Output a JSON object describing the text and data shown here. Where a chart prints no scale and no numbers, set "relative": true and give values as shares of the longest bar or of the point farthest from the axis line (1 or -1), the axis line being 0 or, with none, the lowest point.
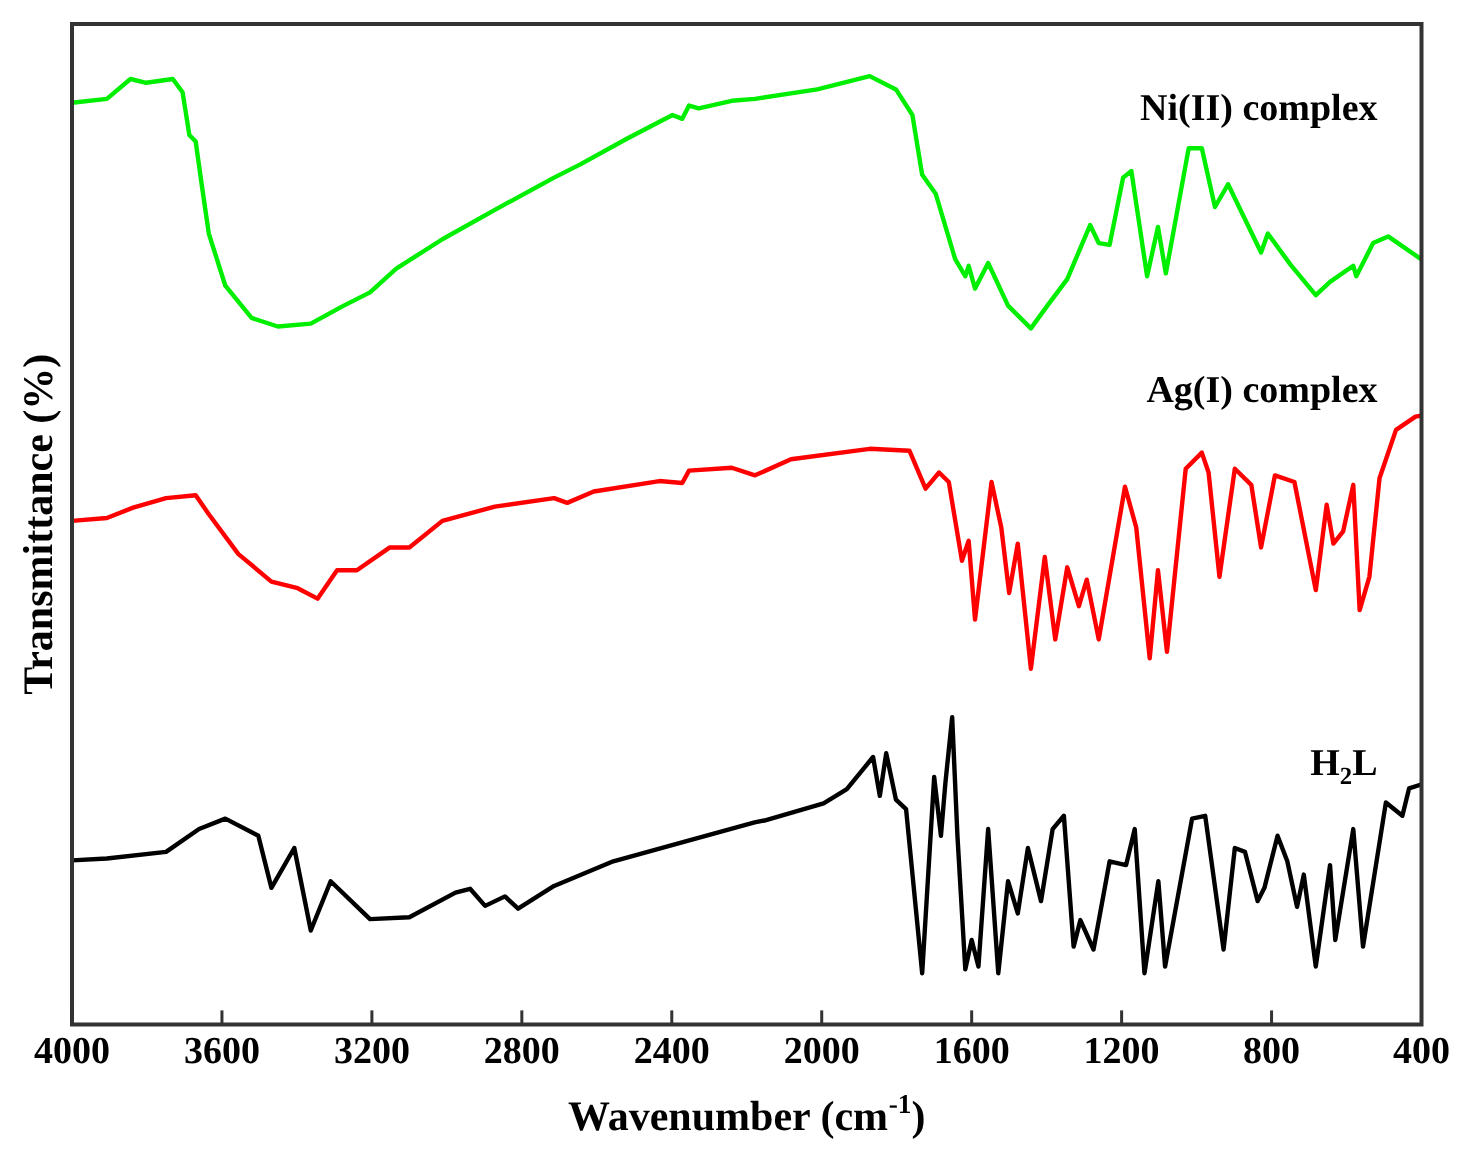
{
  "chart_data": {
    "type": "line",
    "relative": true,
    "xlabel": "Wavenumber (cm$^{-1}$)",
    "ylabel": "Transmittance (%)",
    "xlim": [
      4000,
      400
    ],
    "xticks": [
      4000,
      3600,
      3200,
      2800,
      2400,
      2000,
      1600,
      1200,
      800,
      400
    ],
    "grid": false,
    "legend": false,
    "marker": "none",
    "line_style": "solid",
    "series": [
      {
        "name": "Ni(II) complex",
        "color": "#00ee00",
        "x": [
          4000,
          3907,
          3844,
          3802,
          3731,
          3705,
          3687,
          3670,
          3653,
          3635,
          3591,
          3521,
          3451,
          3363,
          3275,
          3205,
          3135,
          3012,
          2872,
          2714,
          2644,
          2520,
          2398,
          2372,
          2354,
          2328,
          2240,
          2178,
          2012,
          1872,
          1802,
          1758,
          1732,
          1696,
          1644,
          1617,
          1608,
          1591,
          1556,
          1503,
          1442,
          1398,
          1345,
          1284,
          1261,
          1232,
          1196,
          1174,
          1132,
          1103,
          1082,
          1021,
          986,
          951,
          916,
          828,
          810,
          749,
          682,
          644,
          582,
          574,
          529,
          489,
          401
        ],
        "values": [
          0.972,
          0.976,
          0.997,
          0.993,
          0.997,
          0.983,
          0.938,
          0.931,
          0.883,
          0.834,
          0.779,
          0.745,
          0.736,
          0.739,
          0.758,
          0.772,
          0.797,
          0.828,
          0.859,
          0.893,
          0.907,
          0.934,
          0.959,
          0.955,
          0.969,
          0.966,
          0.974,
          0.976,
          0.986,
          1.0,
          0.986,
          0.959,
          0.896,
          0.876,
          0.807,
          0.789,
          0.8,
          0.776,
          0.803,
          0.758,
          0.734,
          0.758,
          0.786,
          0.843,
          0.824,
          0.822,
          0.893,
          0.9,
          0.789,
          0.841,
          0.792,
          0.924,
          0.924,
          0.862,
          0.886,
          0.814,
          0.834,
          0.801,
          0.769,
          0.783,
          0.8,
          0.789,
          0.824,
          0.831,
          0.807
        ]
      },
      {
        "name": "Ag(I) complex",
        "color": "#ff0000",
        "x": [
          4000,
          3907,
          3837,
          3749,
          3670,
          3635,
          3556,
          3468,
          3398,
          3345,
          3293,
          3240,
          3152,
          3100,
          3012,
          2872,
          2714,
          2679,
          2608,
          2433,
          2372,
          2354,
          2240,
          2178,
          2082,
          1872,
          1766,
          1723,
          1687,
          1661,
          1626,
          1608,
          1591,
          1547,
          1521,
          1500,
          1477,
          1442,
          1405,
          1377,
          1345,
          1314,
          1293,
          1261,
          1191,
          1161,
          1125,
          1103,
          1079,
          1029,
          986,
          968,
          939,
          898,
          854,
          828,
          791,
          739,
          682,
          653,
          635,
          609,
          582,
          565,
          539,
          512,
          468,
          416,
          401
        ],
        "values": [
          0.531,
          0.534,
          0.545,
          0.555,
          0.558,
          0.538,
          0.496,
          0.467,
          0.46,
          0.449,
          0.479,
          0.479,
          0.503,
          0.503,
          0.531,
          0.546,
          0.555,
          0.55,
          0.562,
          0.573,
          0.571,
          0.584,
          0.587,
          0.579,
          0.596,
          0.607,
          0.605,
          0.565,
          0.582,
          0.572,
          0.489,
          0.51,
          0.427,
          0.572,
          0.524,
          0.455,
          0.507,
          0.375,
          0.493,
          0.406,
          0.482,
          0.441,
          0.469,
          0.406,
          0.567,
          0.524,
          0.386,
          0.479,
          0.393,
          0.586,
          0.603,
          0.582,
          0.472,
          0.586,
          0.569,
          0.503,
          0.579,
          0.572,
          0.458,
          0.548,
          0.507,
          0.52,
          0.569,
          0.437,
          0.472,
          0.576,
          0.627,
          0.641,
          0.642
        ]
      },
      {
        "name": "H$_{2}$L",
        "color": "#000000",
        "x": [
          4000,
          3907,
          3749,
          3661,
          3591,
          3503,
          3468,
          3407,
          3363,
          3310,
          3205,
          3100,
          2977,
          2938,
          2898,
          2845,
          2810,
          2714,
          2556,
          2363,
          2179,
          2153,
          1995,
          1933,
          1863,
          1845,
          1828,
          1802,
          1775,
          1732,
          1700,
          1682,
          1670,
          1652,
          1638,
          1617,
          1600,
          1582,
          1556,
          1529,
          1503,
          1477,
          1450,
          1415,
          1384,
          1354,
          1328,
          1310,
          1275,
          1232,
          1188,
          1165,
          1139,
          1102,
          1084,
          1012,
          977,
          928,
          898,
          871,
          837,
          819,
          784,
          758,
          732,
          714,
          682,
          644,
          630,
          582,
          556,
          495,
          451,
          433,
          401
        ],
        "values": [
          0.173,
          0.175,
          0.182,
          0.206,
          0.217,
          0.199,
          0.144,
          0.186,
          0.099,
          0.151,
          0.111,
          0.113,
          0.139,
          0.143,
          0.125,
          0.135,
          0.122,
          0.146,
          0.172,
          0.193,
          0.213,
          0.215,
          0.233,
          0.248,
          0.282,
          0.241,
          0.286,
          0.237,
          0.227,
          0.054,
          0.261,
          0.199,
          0.255,
          0.324,
          0.199,
          0.058,
          0.089,
          0.061,
          0.206,
          0.054,
          0.151,
          0.117,
          0.186,
          0.13,
          0.206,
          0.22,
          0.082,
          0.11,
          0.079,
          0.172,
          0.168,
          0.206,
          0.054,
          0.151,
          0.061,
          0.217,
          0.22,
          0.079,
          0.186,
          0.182,
          0.13,
          0.144,
          0.199,
          0.172,
          0.124,
          0.158,
          0.061,
          0.168,
          0.089,
          0.206,
          0.082,
          0.234,
          0.22,
          0.249,
          0.253
        ]
      }
    ]
  }
}
